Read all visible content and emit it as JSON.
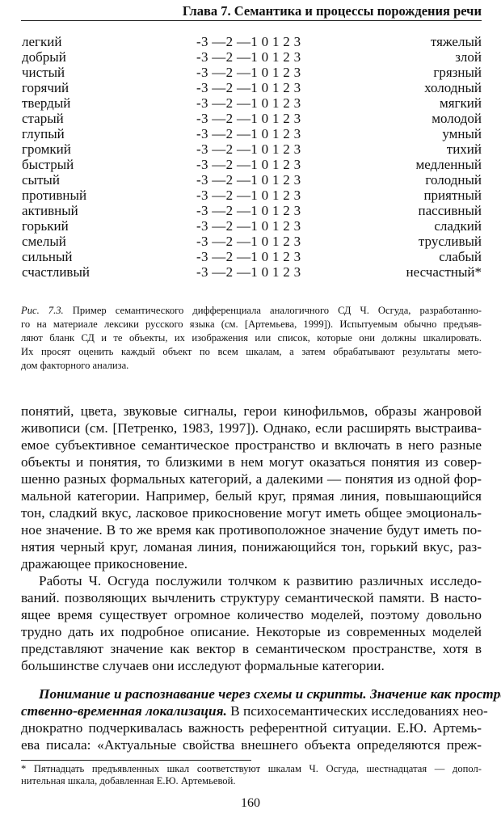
{
  "header": {
    "title": "Глава 7. Семантика и процессы порождения речи"
  },
  "scale_table": {
    "scale": "-3 —2 —1 0 1 2 3",
    "rows": [
      {
        "left": "легкий",
        "right": "тяжелый"
      },
      {
        "left": "добрый",
        "right": "злой"
      },
      {
        "left": "чистый",
        "right": "грязный"
      },
      {
        "left": "горячий",
        "right": "холодный"
      },
      {
        "left": "твердый",
        "right": "мягкий"
      },
      {
        "left": "старый",
        "right": "молодой"
      },
      {
        "left": "глупый",
        "right": "умный"
      },
      {
        "left": "громкий",
        "right": "тихий"
      },
      {
        "left": "быстрый",
        "right": "медленный"
      },
      {
        "left": "сытый",
        "right": "голодный"
      },
      {
        "left": "противный",
        "right": "приятный"
      },
      {
        "left": "активный",
        "right": "пассивный"
      },
      {
        "left": "горький",
        "right": "сладкий"
      },
      {
        "left": "смелый",
        "right": "трусливый"
      },
      {
        "left": "сильный",
        "right": "слабый"
      },
      {
        "left": "счастливый",
        "right": "несчастный*"
      }
    ]
  },
  "caption": {
    "label": "Рис. 7.3.",
    "lines": [
      " Пример семантического дифференциала аналогичного СД Ч. Осгуда, разработанно-",
      "го на материале лексики русского языка (см. [Артемьева, 1999]). Испытуемым обычно предъяв-",
      "ляют бланк СД и те объекты, их изображения или список, которые они должны шкалировать.",
      "Их просят оценить каждый объект по всем шкалам, а затем обрабатывают результаты мето-",
      "дом факторного анализа."
    ]
  },
  "body": {
    "paragraph1": [
      "понятий, цвета, звуковые сигналы, герои кинофильмов, образы жанровой",
      "живописи (см. [Петренко, 1983, 1997]). Однако, если расширять выстраива-",
      "емое субъективное семантическое пространство и включать в него разные",
      "объекты и понятия, то близкими в нем могут оказаться понятия из совер-",
      "шенно разных формальных категорий, а далекими — понятия из одной фор-",
      "мальной категории. Например, белый круг, прямая линия, повышающийся",
      "тон, сладкий вкус, ласковое прикосновение могут иметь общее эмоциональ-",
      "ное значение. В то же время как противоположное значение будут иметь по-",
      "нятия черный круг, ломаная линия, понижающийся тон, горький вкус, раз-",
      "дражающее прикосновение."
    ],
    "paragraph2": [
      "Работы Ч. Осгуда послужили толчком к развитию различных исследо-",
      "ваний. позволяющих вычленить структуру семантической памяти. В насто-",
      "ящее время существует огромное количество моделей, поэтому довольно",
      "трудно дать их подробное описание. Некоторые из современных моделей",
      "представляют значение как вектор в семантическом пространстве, хотя в",
      "большинстве случаев они исследуют формальные категории."
    ],
    "paragraph3": {
      "heading_line1": "Понимание и распознавание через схемы и скрипты. Значение как простран-",
      "heading_line2": "ственно-временная локализация.",
      "line2_rest": " В психосемантических исследованиях нео-",
      "lines": [
        "днократно подчеркивалась важность референтной ситуации. Е.Ю. Артемь-",
        "ева писала: «Актуальные свойства внешнего объекта определяются преж-"
      ]
    }
  },
  "footnote": {
    "lines": [
      "* Пятнадцать предъявленных шкал соответствуют шкалам Ч. Осгуда, шестнадцатая — допол-",
      "нительная шкала, добавленная Е.Ю. Артемьевой."
    ]
  },
  "page_number": "160"
}
